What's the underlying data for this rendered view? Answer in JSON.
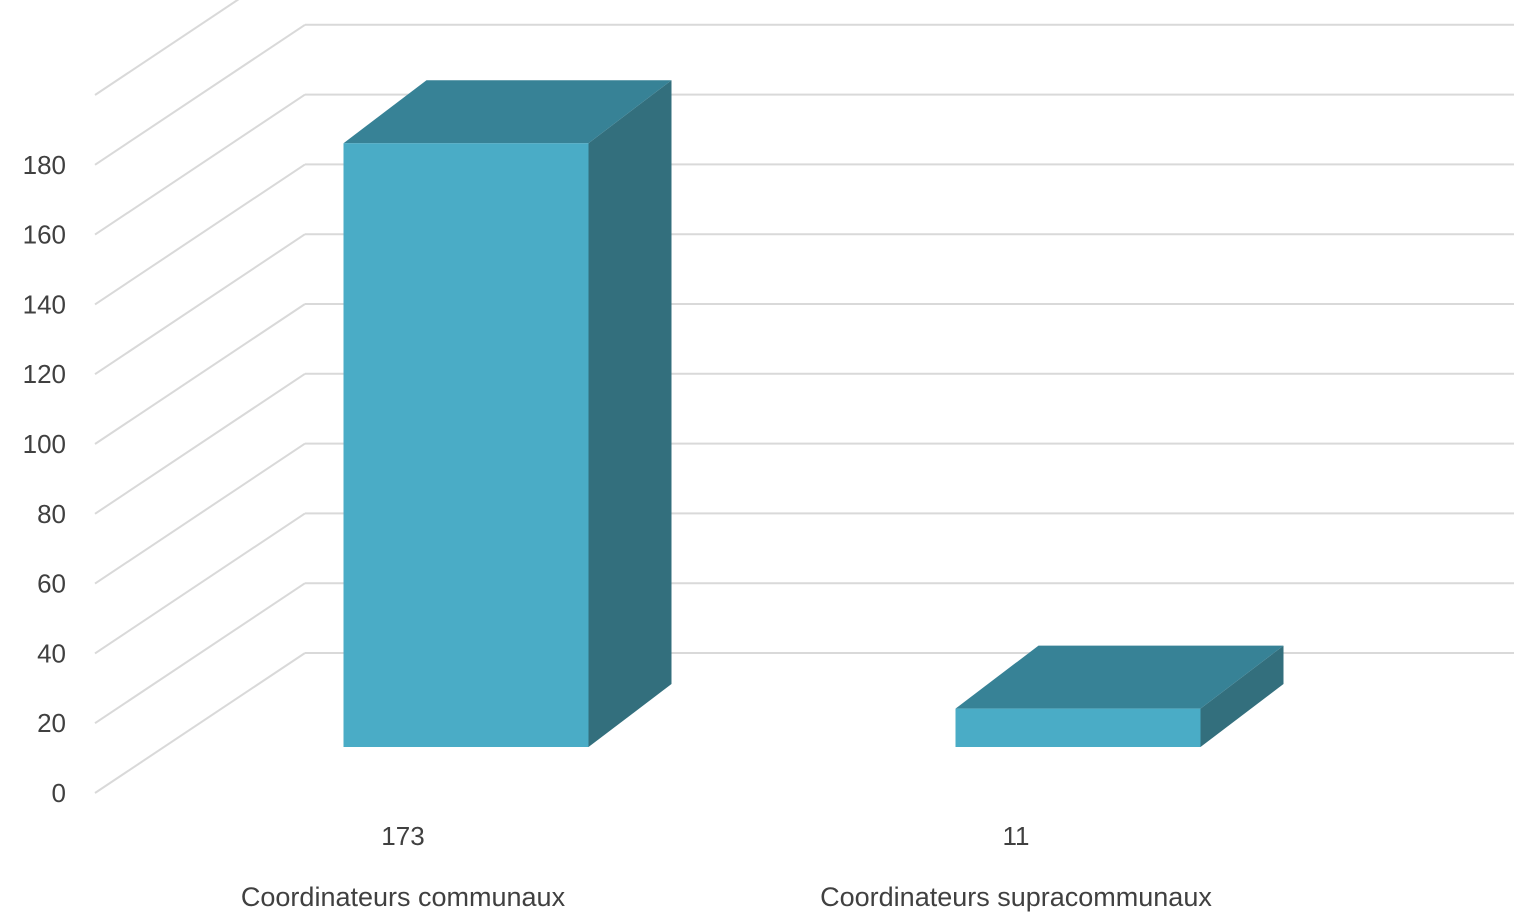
{
  "chart_data": {
    "type": "bar",
    "three_d": true,
    "categories": [
      "Coordinateurs communaux",
      "Coordinateurs supracommunaux"
    ],
    "values": [
      173,
      11
    ],
    "data_labels": [
      "173",
      "11"
    ],
    "y_ticks": [
      "0",
      "20",
      "40",
      "60",
      "80",
      "100",
      "120",
      "140",
      "160",
      "180"
    ],
    "ylim": [
      0,
      200
    ],
    "grid": true,
    "legend": "none",
    "colors": {
      "front": "#4aacc6",
      "top": "#378296",
      "side": "#336f7d",
      "grid": "#d9d9d9",
      "text": "#404040"
    }
  }
}
